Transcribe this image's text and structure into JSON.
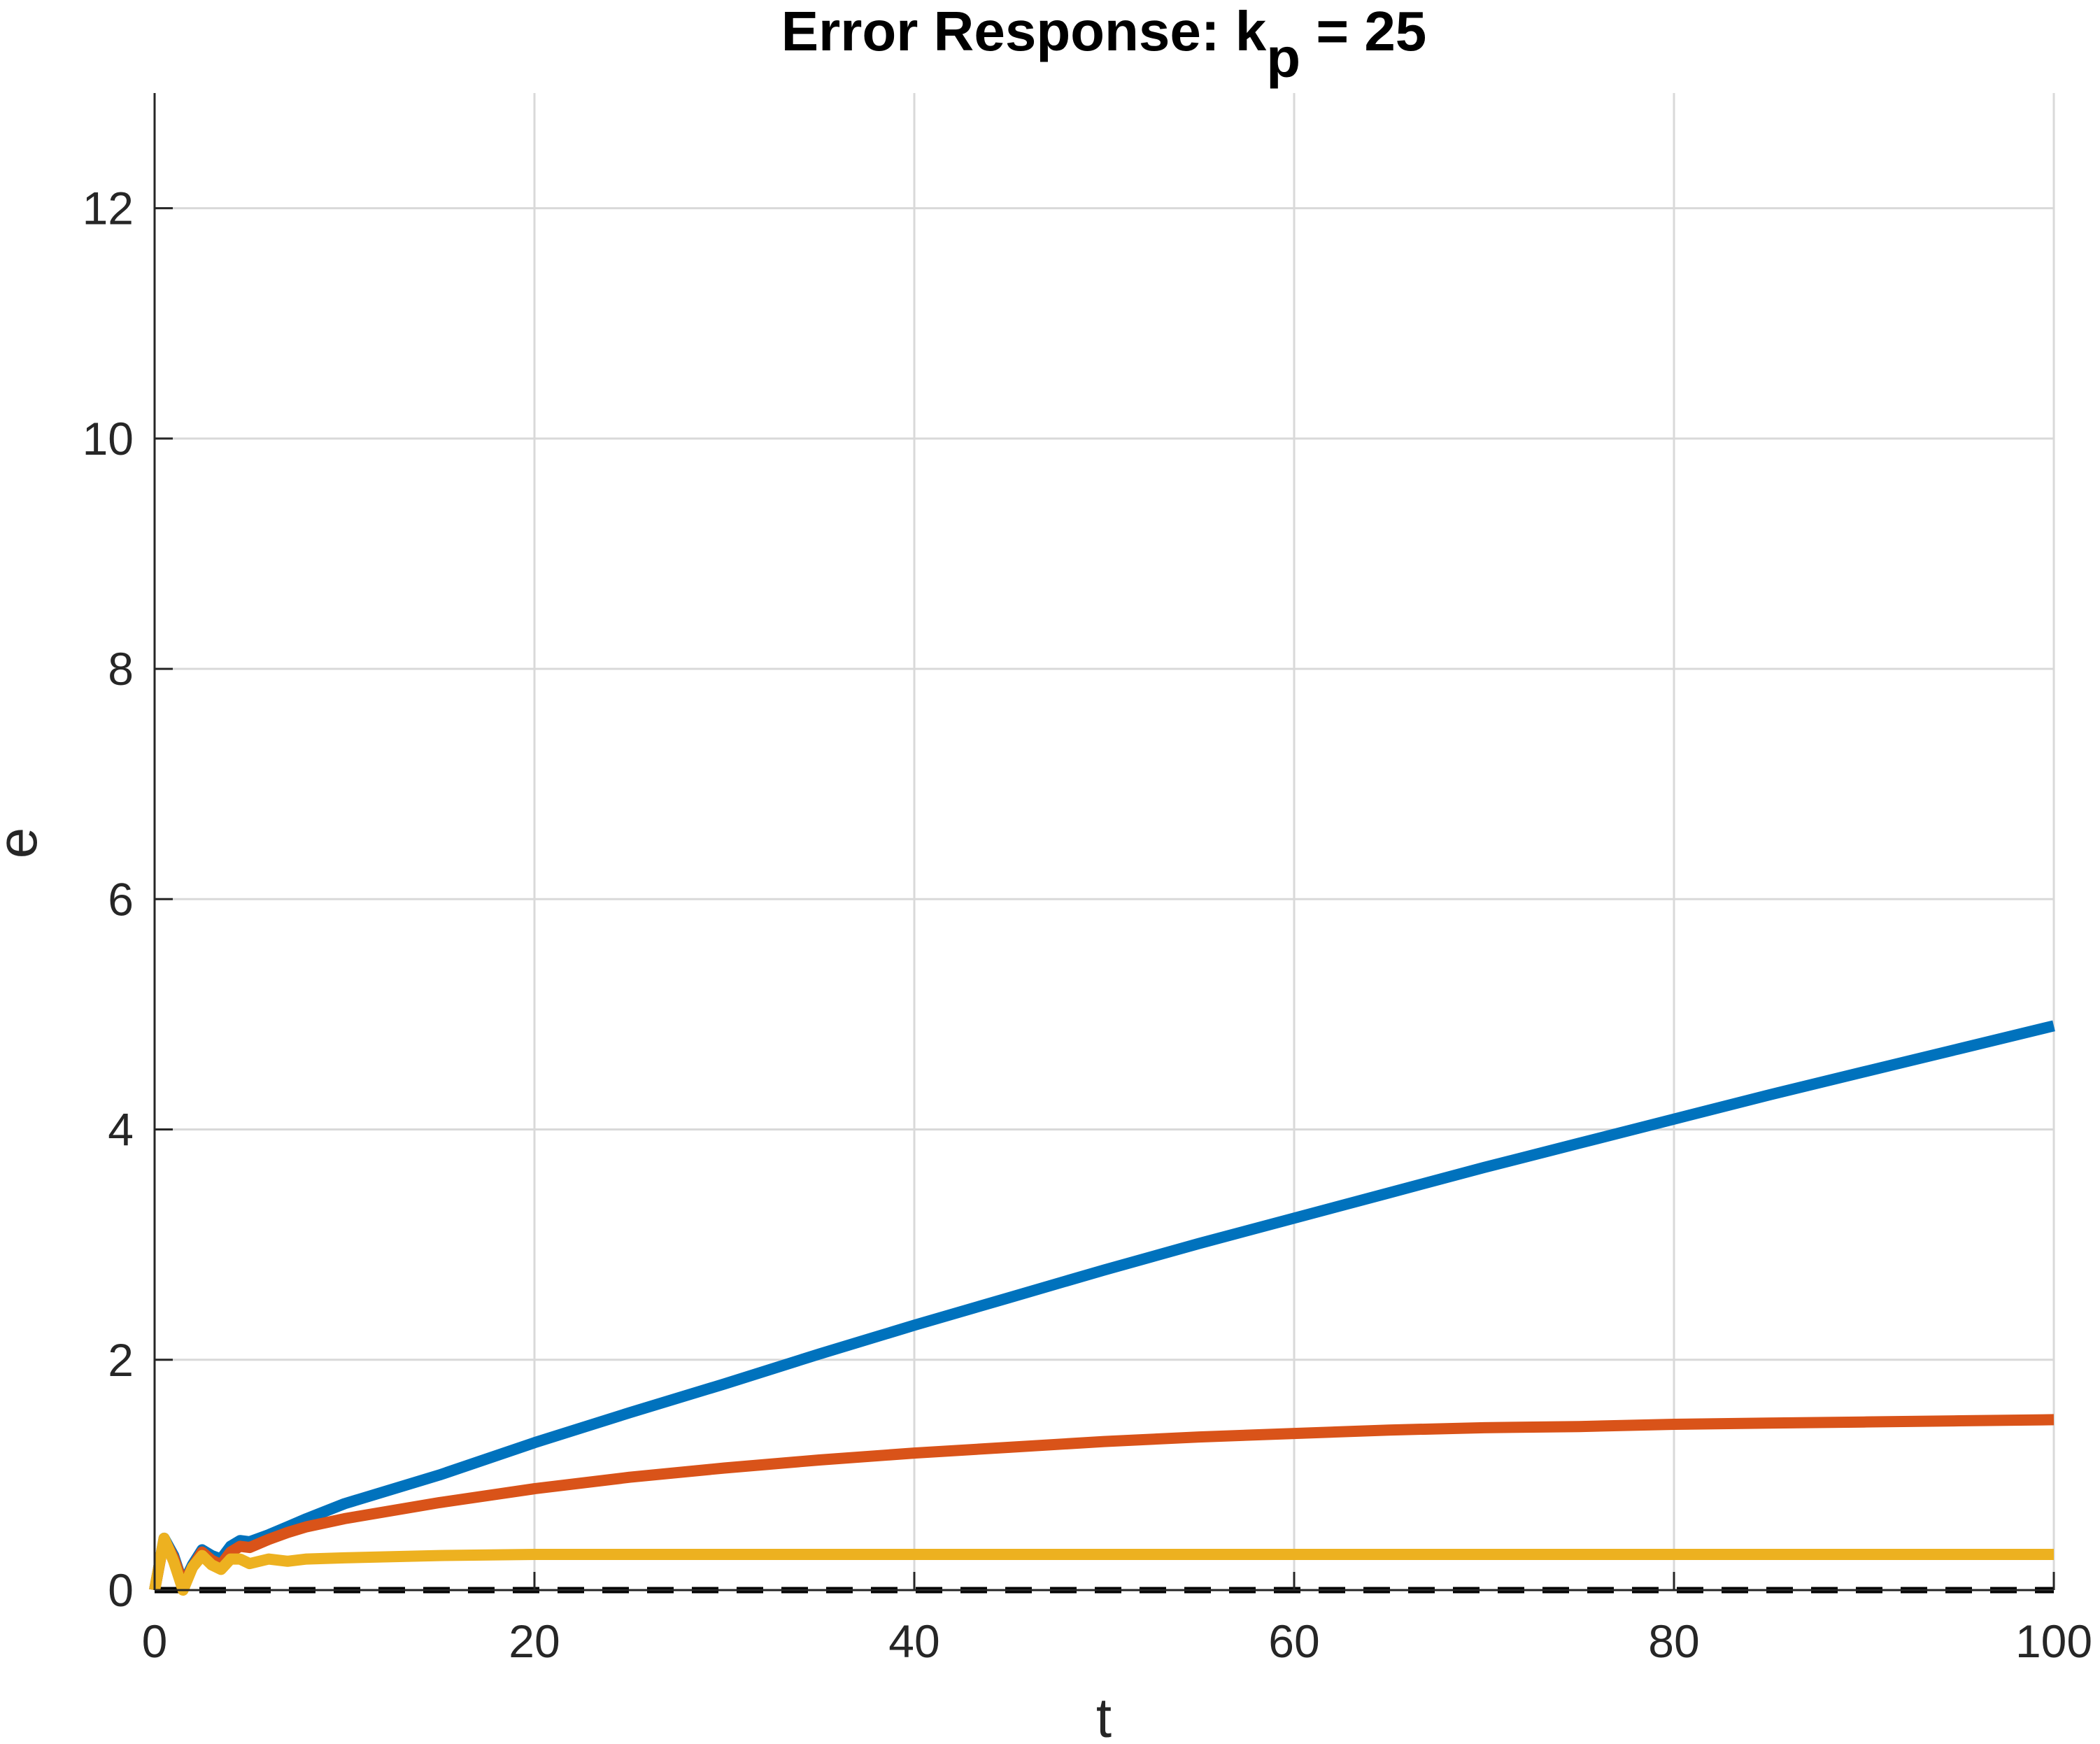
{
  "chart_data": {
    "type": "line",
    "title": {
      "main": "Error Response: k",
      "subscript": "p",
      "suffix": " = 25"
    },
    "xlabel": "t",
    "ylabel": "e",
    "xlim": [
      0,
      100
    ],
    "ylim": [
      0,
      13
    ],
    "xticks": [
      0,
      20,
      40,
      60,
      80,
      100
    ],
    "yticks": [
      0,
      2,
      4,
      6,
      8,
      10,
      12
    ],
    "xtick_labels": [
      "0",
      "20",
      "40",
      "60",
      "80",
      "100"
    ],
    "ytick_labels": [
      "0",
      "2",
      "4",
      "6",
      "8",
      "10",
      "12"
    ],
    "grid": true,
    "legend": "none",
    "series": [
      {
        "color": "#0072BD",
        "x": [
          0,
          0.5,
          1,
          1.5,
          2,
          2.5,
          3,
          3.5,
          4,
          4.5,
          5,
          6,
          7,
          8,
          10,
          15,
          20,
          25,
          30,
          35,
          40,
          45,
          50,
          55,
          60,
          65,
          70,
          75,
          80,
          85,
          90,
          95,
          100
        ],
        "y": [
          0,
          0.45,
          0.3,
          0.05,
          0.22,
          0.35,
          0.3,
          0.27,
          0.38,
          0.43,
          0.42,
          0.48,
          0.55,
          0.62,
          0.75,
          1.0,
          1.28,
          1.54,
          1.79,
          2.05,
          2.3,
          2.54,
          2.78,
          3.01,
          3.23,
          3.45,
          3.67,
          3.88,
          4.09,
          4.3,
          4.5,
          4.7,
          4.9
        ]
      },
      {
        "color": "#D95319",
        "x": [
          0,
          0.5,
          1,
          1.5,
          2,
          2.5,
          3,
          3.5,
          4,
          4.5,
          5,
          6,
          7,
          8,
          10,
          15,
          20,
          25,
          30,
          35,
          40,
          45,
          50,
          55,
          60,
          65,
          70,
          75,
          80,
          85,
          90,
          95,
          100
        ],
        "y": [
          0,
          0.44,
          0.28,
          0.05,
          0.2,
          0.33,
          0.26,
          0.22,
          0.33,
          0.38,
          0.37,
          0.44,
          0.5,
          0.55,
          0.62,
          0.76,
          0.88,
          0.98,
          1.06,
          1.13,
          1.19,
          1.24,
          1.29,
          1.33,
          1.36,
          1.39,
          1.41,
          1.42,
          1.44,
          1.45,
          1.46,
          1.47,
          1.48
        ]
      },
      {
        "color": "#EDB120",
        "x": [
          0,
          0.5,
          1,
          1.5,
          2,
          2.5,
          3,
          3.5,
          4,
          4.5,
          5,
          6,
          7,
          8,
          10,
          15,
          20,
          30,
          40,
          50,
          60,
          70,
          80,
          90,
          100
        ],
        "y": [
          0,
          0.45,
          0.25,
          0.0,
          0.2,
          0.3,
          0.22,
          0.18,
          0.27,
          0.27,
          0.23,
          0.27,
          0.25,
          0.27,
          0.28,
          0.3,
          0.31,
          0.31,
          0.31,
          0.31,
          0.31,
          0.31,
          0.31,
          0.31,
          0.31
        ]
      }
    ],
    "reference_line": {
      "style": "dashed",
      "color": "#000000",
      "y": 0
    }
  }
}
